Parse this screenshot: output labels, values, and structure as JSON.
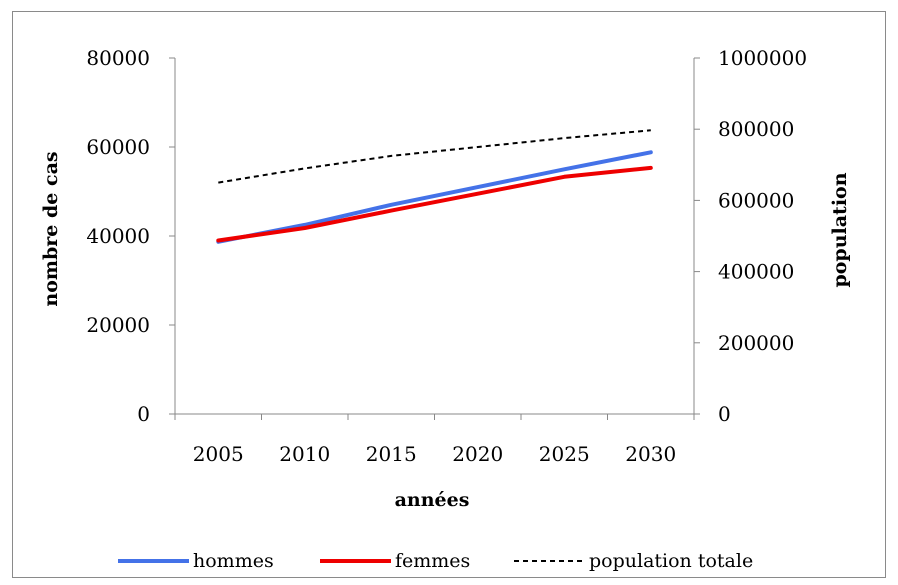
{
  "chart_data": {
    "type": "line",
    "categories": [
      "2005",
      "2010",
      "2015",
      "2020",
      "2025",
      "2030"
    ],
    "xlabel": "années",
    "ylabel_left": "nombre de cas",
    "ylabel_right": "population",
    "ylim_left": [
      0,
      80000
    ],
    "ylim_right": [
      0,
      1000000
    ],
    "yticks_left": [
      "0",
      "20000",
      "40000",
      "60000",
      "80000"
    ],
    "yticks_right": [
      "0",
      "200000",
      "400000",
      "600000",
      "800000",
      "1000000"
    ],
    "grid": false,
    "legend_position": "bottom",
    "series": [
      {
        "name": "hommes",
        "axis": "left",
        "color": "#4472e8",
        "style": "solid",
        "values": [
          38700,
          42500,
          47000,
          51000,
          55000,
          58800
        ]
      },
      {
        "name": "femmes",
        "axis": "left",
        "color": "#ee0000",
        "style": "solid",
        "values": [
          39000,
          41800,
          45700,
          49500,
          53300,
          55300
        ]
      },
      {
        "name": "population totale",
        "axis": "right",
        "color": "#000000",
        "style": "dashed",
        "values": [
          650000,
          690000,
          725000,
          750000,
          775000,
          797000
        ]
      }
    ]
  }
}
